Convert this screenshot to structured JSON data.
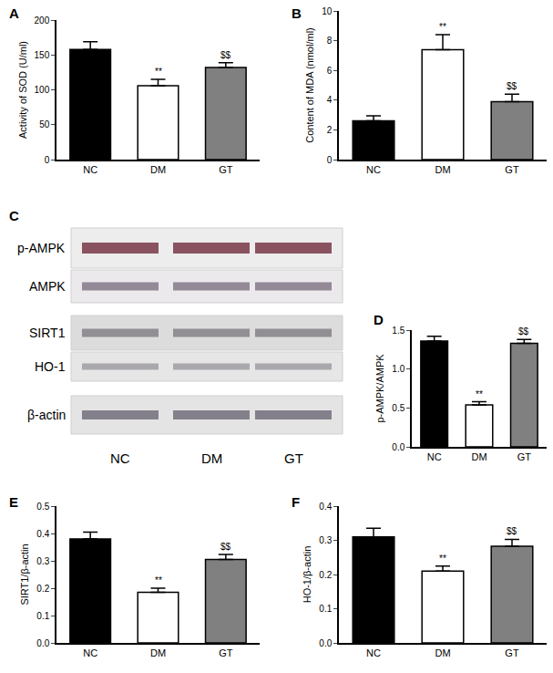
{
  "chart_data": [
    {
      "type": "bar",
      "panel": "A",
      "y_label": "Activity of SOD (U/ml)",
      "categories": [
        "NC",
        "DM",
        "GT"
      ],
      "values": [
        158,
        106,
        132
      ],
      "errors": [
        11,
        9,
        7
      ],
      "colors": [
        "#000000",
        "#ffffff",
        "#808080"
      ],
      "ylim": [
        0,
        200
      ],
      "yticks": [
        0,
        50,
        100,
        150,
        200
      ],
      "grid": false,
      "annotations": [
        {
          "category": "DM",
          "text": "**"
        },
        {
          "category": "GT",
          "text": "$$"
        }
      ]
    },
    {
      "type": "bar",
      "panel": "B",
      "y_label": "Content of MDA (nmol/ml)",
      "categories": [
        "NC",
        "DM",
        "GT"
      ],
      "values": [
        2.6,
        7.4,
        3.9
      ],
      "errors": [
        0.35,
        1.0,
        0.5
      ],
      "colors": [
        "#000000",
        "#ffffff",
        "#808080"
      ],
      "ylim": [
        0,
        10
      ],
      "yticks": [
        0,
        2,
        4,
        6,
        8,
        10
      ],
      "grid": false,
      "annotations": [
        {
          "category": "DM",
          "text": "**"
        },
        {
          "category": "GT",
          "text": "$$"
        }
      ]
    },
    {
      "type": "bar",
      "panel": "D",
      "y_label": "p-AMPK/AMPK",
      "categories": [
        "NC",
        "DM",
        "GT"
      ],
      "values": [
        1.36,
        0.54,
        1.33
      ],
      "errors": [
        0.06,
        0.04,
        0.05
      ],
      "colors": [
        "#000000",
        "#ffffff",
        "#808080"
      ],
      "ylim": [
        0,
        1.5
      ],
      "yticks": [
        {
          "value": 0,
          "label": "0.0"
        },
        {
          "value": 0.5,
          "label": "0.5"
        },
        {
          "value": 1,
          "label": "1.0"
        },
        {
          "value": 1.5,
          "label": "1.5"
        }
      ],
      "grid": false,
      "annotations": [
        {
          "category": "DM",
          "text": "**"
        },
        {
          "category": "GT",
          "text": "$$"
        }
      ]
    },
    {
      "type": "bar",
      "panel": "E",
      "y_label": "SIRT1/β-actin",
      "categories": [
        "NC",
        "DM",
        "GT"
      ],
      "values": [
        0.38,
        0.185,
        0.305
      ],
      "errors": [
        0.025,
        0.015,
        0.018
      ],
      "colors": [
        "#000000",
        "#ffffff",
        "#808080"
      ],
      "ylim": [
        0,
        0.5
      ],
      "yticks": [
        {
          "value": 0,
          "label": "0.0"
        },
        0.1,
        0.2,
        0.3,
        0.4,
        0.5
      ],
      "grid": false,
      "annotations": [
        {
          "category": "DM",
          "text": "**"
        },
        {
          "category": "GT",
          "text": "$$"
        }
      ]
    },
    {
      "type": "bar",
      "panel": "F",
      "y_label": "HO-1/β-actin",
      "categories": [
        "NC",
        "DM",
        "GT"
      ],
      "values": [
        0.31,
        0.21,
        0.283
      ],
      "errors": [
        0.025,
        0.015,
        0.02
      ],
      "colors": [
        "#000000",
        "#ffffff",
        "#808080"
      ],
      "ylim": [
        0,
        0.4
      ],
      "yticks": [
        {
          "value": 0,
          "label": "0.0"
        },
        0.1,
        0.2,
        0.3,
        0.4
      ],
      "grid": false,
      "annotations": [
        {
          "category": "DM",
          "text": "**"
        },
        {
          "category": "GT",
          "text": "$$"
        }
      ]
    }
  ],
  "blot": {
    "panel": "C",
    "rows": [
      "p-AMPK",
      "AMPK",
      "SIRT1",
      "HO-1",
      "β-actin"
    ],
    "lanes": [
      "NC",
      "DM",
      "GT"
    ]
  }
}
